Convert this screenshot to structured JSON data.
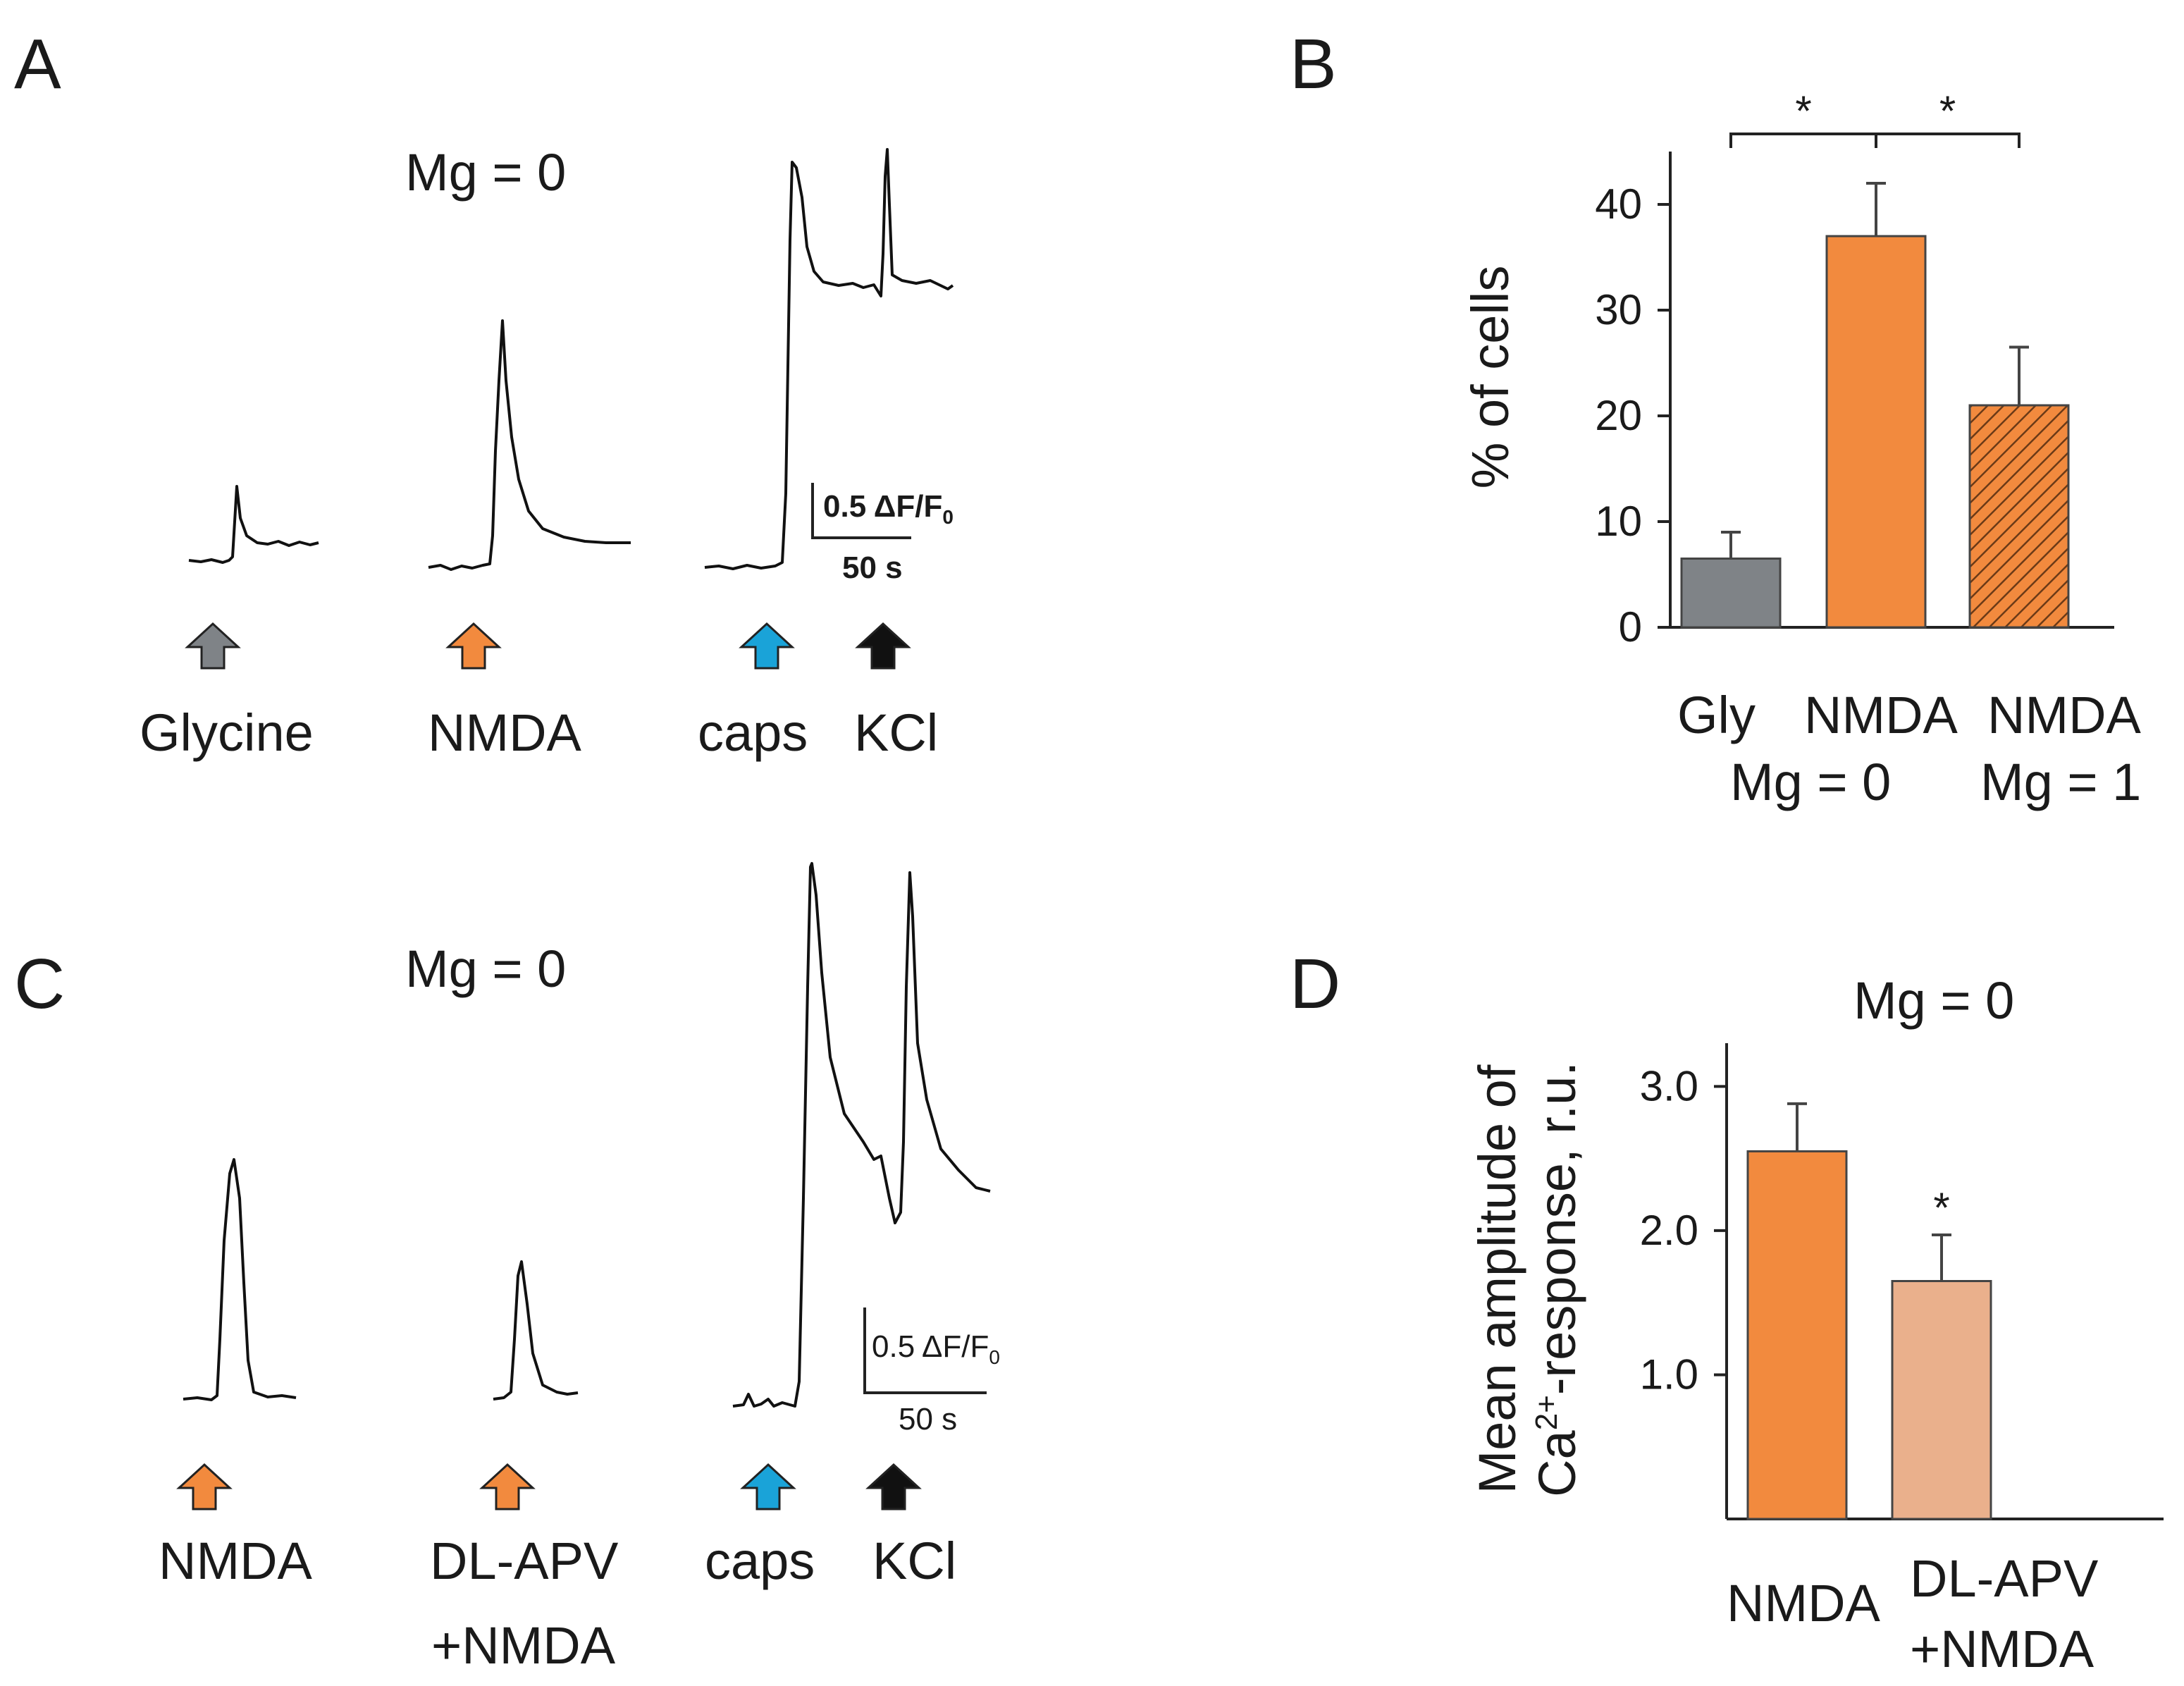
{
  "colors": {
    "gly": "#7f8387",
    "nmda": "#f28a3e",
    "caps": "#1aa3d8",
    "kcl": "#111111",
    "apv_nmda": "#eab08c",
    "text": "#1a1a1a"
  },
  "panels": {
    "a": {
      "letter": "A",
      "condition": "Mg = 0",
      "stimuli": [
        "Glycine",
        "NMDA",
        "caps",
        "KCl"
      ],
      "scale_y": "0.5 ΔF/F",
      "scale_y_sub": "0",
      "scale_x": "50 s"
    },
    "b": {
      "letter": "B"
    },
    "c": {
      "letter": "C",
      "condition": "Mg = 0",
      "stimuli": [
        "NMDA",
        "DL-APV",
        "+NMDA",
        "caps",
        "KCl"
      ],
      "scale_y": "0.5 ΔF/F",
      "scale_y_sub": "0",
      "scale_x": "50 s"
    },
    "d": {
      "letter": "D"
    }
  },
  "chart_data": [
    {
      "panel": "B",
      "type": "bar",
      "categories": [
        "Gly",
        "NMDA",
        "NMDA"
      ],
      "group_labels": [
        "Mg = 0",
        "Mg = 1"
      ],
      "values": [
        6.5,
        37,
        21
      ],
      "errors": [
        2.5,
        5,
        5.5
      ],
      "fills": [
        "gly",
        "nmda",
        "nmda-hatched"
      ],
      "ylabel": "% of cells",
      "ylim": [
        0,
        45
      ],
      "yticks": [
        0,
        10,
        20,
        30,
        40
      ],
      "significance": [
        {
          "from": 0,
          "to": 1,
          "label": "*"
        },
        {
          "from": 1,
          "to": 2,
          "label": "*"
        }
      ]
    },
    {
      "panel": "D",
      "type": "bar",
      "title": "Mg = 0",
      "categories": [
        "NMDA",
        "DL-APV\n+NMDA"
      ],
      "values": [
        2.55,
        1.65
      ],
      "errors": [
        0.33,
        0.32
      ],
      "fills": [
        "nmda",
        "apv_nmda"
      ],
      "ylabel_line1": "Mean amplitude of",
      "ylabel_line2_prefix": "Ca",
      "ylabel_line2_sup": "2+",
      "ylabel_line2_suffix": "-response, r.u.",
      "ylim": [
        0,
        3.3
      ],
      "yticks": [
        "1.0",
        "2.0",
        "3.0"
      ],
      "significance": [
        {
          "bar": 1,
          "label": "*"
        }
      ]
    }
  ]
}
